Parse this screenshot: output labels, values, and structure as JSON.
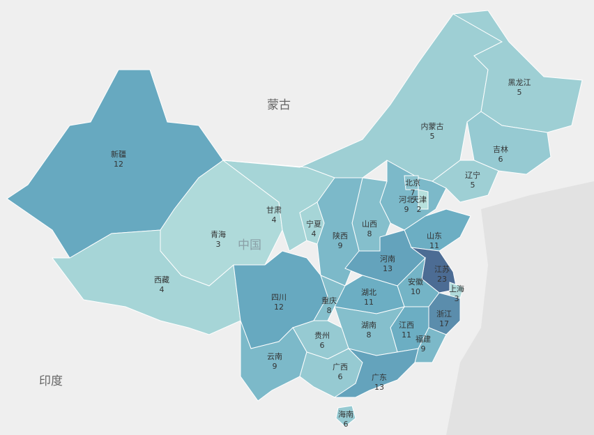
{
  "map": {
    "country_labels": [
      "蒙古",
      "中国",
      "印度"
    ],
    "regions": [
      {
        "name": "新疆",
        "value": 12
      },
      {
        "name": "西藏",
        "value": 4
      },
      {
        "name": "青海",
        "value": 3
      },
      {
        "name": "甘肃",
        "value": 4
      },
      {
        "name": "内蒙古",
        "value": 5
      },
      {
        "name": "黑龙江",
        "value": 5
      },
      {
        "name": "吉林",
        "value": 6
      },
      {
        "name": "辽宁",
        "value": 5
      },
      {
        "name": "河北",
        "value": 9
      },
      {
        "name": "北京",
        "value": 7
      },
      {
        "name": "天津",
        "value": 2
      },
      {
        "name": "山西",
        "value": 8
      },
      {
        "name": "宁夏",
        "value": 4
      },
      {
        "name": "陕西",
        "value": 9
      },
      {
        "name": "山东",
        "value": 11
      },
      {
        "name": "河南",
        "value": 13
      },
      {
        "name": "江苏",
        "value": 23
      },
      {
        "name": "上海",
        "value": 3
      },
      {
        "name": "安徽",
        "value": 10
      },
      {
        "name": "湖北",
        "value": 11
      },
      {
        "name": "四川",
        "value": 12
      },
      {
        "name": "重庆",
        "value": 8
      },
      {
        "name": "浙江",
        "value": 17
      },
      {
        "name": "江西",
        "value": 11
      },
      {
        "name": "湖南",
        "value": 8
      },
      {
        "name": "福建",
        "value": 9
      },
      {
        "name": "贵州",
        "value": 6
      },
      {
        "name": "云南",
        "value": 9
      },
      {
        "name": "广西",
        "value": 6
      },
      {
        "name": "广东",
        "value": 13
      },
      {
        "name": "海南",
        "value": 6
      }
    ]
  }
}
